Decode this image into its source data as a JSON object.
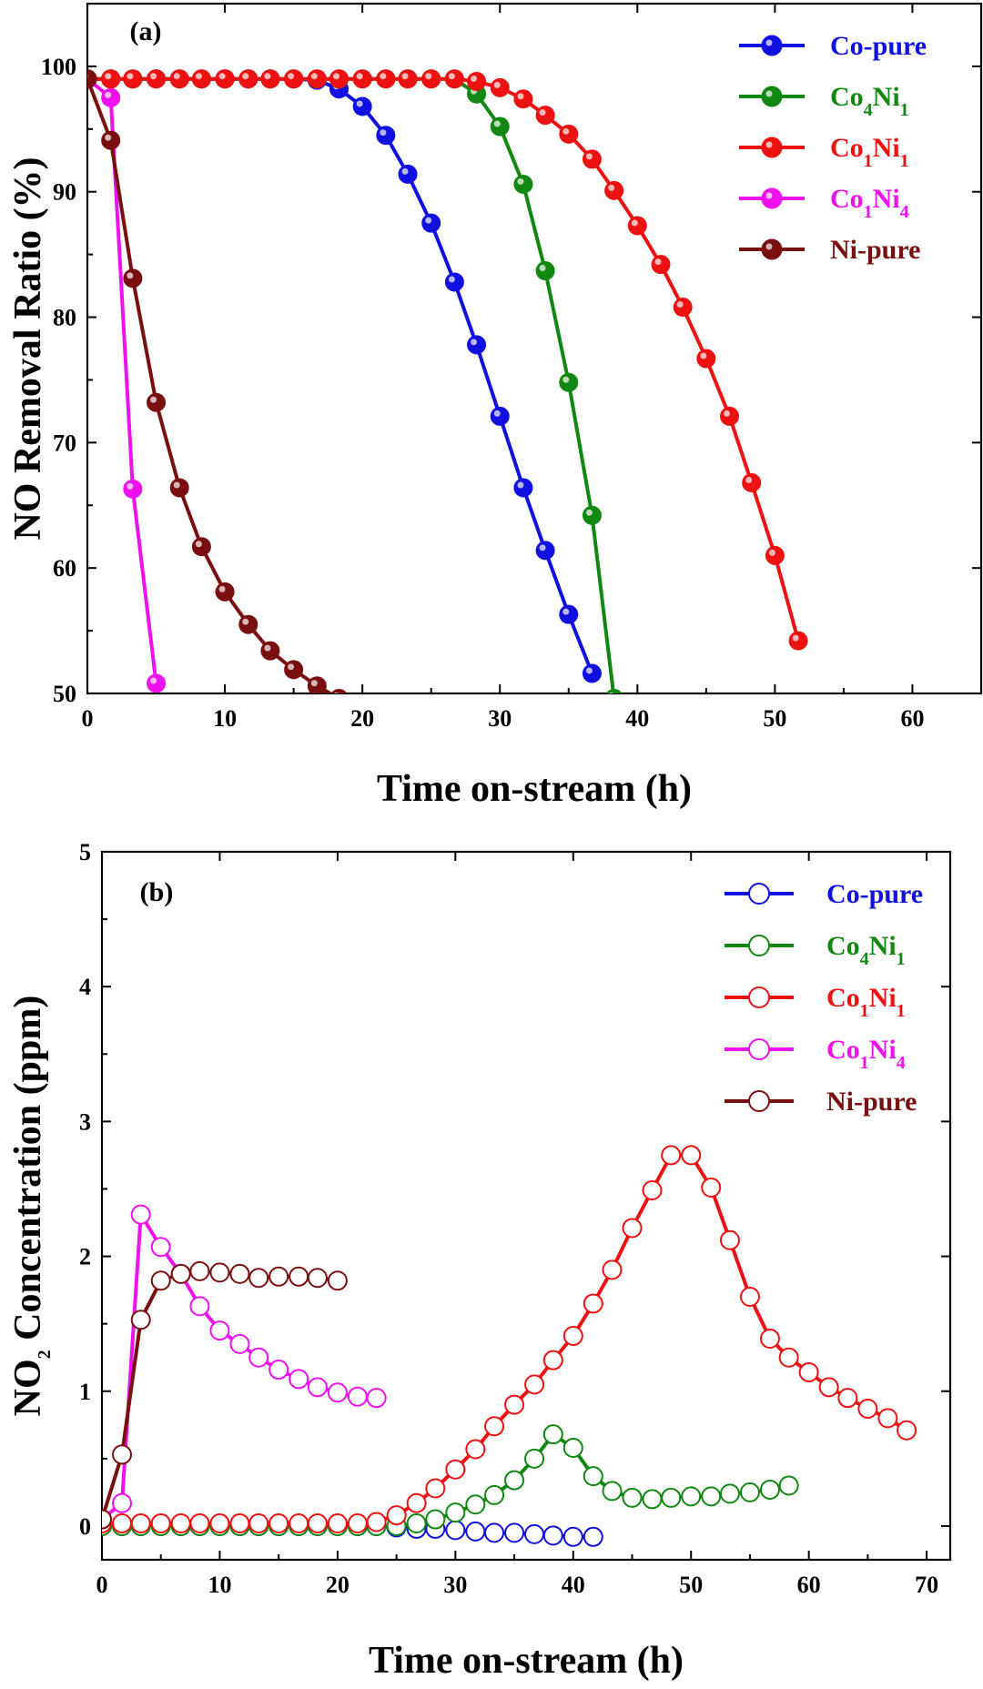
{
  "chart_data": [
    {
      "type": "line",
      "panel": "(a)",
      "xlabel": "Time on-stream (h)",
      "ylabel": "NO Removal Ratio (%)",
      "xlim": [
        0,
        65
      ],
      "ylim": [
        50,
        105
      ],
      "xticks": [
        0,
        10,
        20,
        30,
        40,
        50,
        60
      ],
      "yticks": [
        50,
        60,
        70,
        80,
        90,
        100
      ],
      "marker": "filled-circle",
      "legend_position": "top-right",
      "series": [
        {
          "name": "Co-pure",
          "label_main": "Co-pure",
          "label_parts": [
            {
              "t": "Co-pure",
              "sub": false
            }
          ],
          "color": "#1010e0",
          "x": [
            0,
            1.7,
            3.3,
            5,
            6.7,
            8.3,
            10,
            11.7,
            13.3,
            15,
            16.7,
            18.3,
            20,
            21.7,
            23.3,
            25,
            26.7,
            28.3,
            30,
            31.7,
            33.3,
            35,
            36.7
          ],
          "y": [
            99,
            99,
            99,
            99,
            99,
            99,
            99,
            99,
            99,
            99,
            98.9,
            98.2,
            96.8,
            94.5,
            91.4,
            87.5,
            82.8,
            77.8,
            72.1,
            66.4,
            61.4,
            56.3,
            51.6
          ]
        },
        {
          "name": "Co4Ni1",
          "label_parts": [
            {
              "t": "Co",
              "sub": false
            },
            {
              "t": "4",
              "sub": true
            },
            {
              "t": "Ni",
              "sub": false
            },
            {
              "t": "1",
              "sub": true
            }
          ],
          "color": "#118811",
          "x": [
            0,
            1.7,
            3.3,
            5,
            6.7,
            8.3,
            10,
            11.7,
            13.3,
            15,
            16.7,
            18.3,
            20,
            21.7,
            23.3,
            25,
            26.7,
            28.3,
            30,
            31.7,
            33.3,
            35,
            36.7,
            38.3
          ],
          "y": [
            99,
            99,
            99,
            99,
            99,
            99,
            99,
            99,
            99,
            99,
            99,
            99,
            99,
            99,
            99,
            99,
            99,
            97.8,
            95.2,
            90.6,
            83.7,
            74.8,
            64.2,
            49.6
          ]
        },
        {
          "name": "Co1Ni1",
          "label_parts": [
            {
              "t": "Co",
              "sub": false
            },
            {
              "t": "1",
              "sub": true
            },
            {
              "t": "Ni",
              "sub": false
            },
            {
              "t": "1",
              "sub": true
            }
          ],
          "color": "#ee1111",
          "x": [
            0,
            1.7,
            3.3,
            5,
            6.7,
            8.3,
            10,
            11.7,
            13.3,
            15,
            16.7,
            18.3,
            20,
            21.7,
            23.3,
            25,
            26.7,
            28.3,
            30,
            31.7,
            33.3,
            35,
            36.7,
            38.3,
            40,
            41.7,
            43.3,
            45,
            46.7,
            48.3,
            50,
            51.7
          ],
          "y": [
            99,
            99,
            99,
            99,
            99,
            99,
            99,
            99,
            99,
            99,
            99,
            99,
            99,
            99,
            99,
            99,
            99,
            98.8,
            98.3,
            97.4,
            96.1,
            94.6,
            92.6,
            90.1,
            87.3,
            84.2,
            80.8,
            76.7,
            72.1,
            66.8,
            61,
            54.2
          ]
        },
        {
          "name": "Co1Ni4",
          "label_parts": [
            {
              "t": "Co",
              "sub": false
            },
            {
              "t": "1",
              "sub": true
            },
            {
              "t": "Ni",
              "sub": false
            },
            {
              "t": "4",
              "sub": true
            }
          ],
          "color": "#ee11ee",
          "x": [
            0,
            1.7,
            3.3,
            5
          ],
          "y": [
            99,
            97.5,
            66.3,
            50.8
          ]
        },
        {
          "name": "Ni-pure",
          "label_parts": [
            {
              "t": "Ni-pure",
              "sub": false
            }
          ],
          "color": "#7a0f0f",
          "x": [
            0,
            1.7,
            3.3,
            5,
            6.7,
            8.3,
            10,
            11.7,
            13.3,
            15,
            16.7,
            18.3
          ],
          "y": [
            99,
            94.1,
            83.1,
            73.2,
            66.4,
            61.7,
            58.1,
            55.5,
            53.4,
            51.9,
            50.6,
            49.6
          ]
        }
      ]
    },
    {
      "type": "line",
      "panel": "(b)",
      "xlabel": "Time on-stream (h)",
      "ylabel_parts": [
        {
          "t": "NO",
          "sub": false
        },
        {
          "t": "2",
          "sub": true
        },
        {
          "t": " Concentration (ppm)",
          "sub": false
        }
      ],
      "xlim": [
        0,
        72
      ],
      "ylim": [
        -0.25,
        5
      ],
      "xticks": [
        0,
        10,
        20,
        30,
        40,
        50,
        60,
        70
      ],
      "yticks": [
        0,
        1,
        2,
        3,
        4,
        5
      ],
      "marker": "open-circle",
      "legend_position": "top-right",
      "series": [
        {
          "name": "Co-pure",
          "label_parts": [
            {
              "t": "Co-pure",
              "sub": false
            }
          ],
          "color": "#1010e0",
          "x": [
            0,
            1.7,
            3.3,
            5,
            6.7,
            8.3,
            10,
            11.7,
            13.3,
            15,
            16.7,
            18.3,
            20,
            21.7,
            23.3,
            25,
            26.7,
            28.3,
            30,
            31.7,
            33.3,
            35,
            36.7,
            38.3,
            40,
            41.7
          ],
          "y": [
            0,
            0,
            0,
            0,
            0,
            0,
            0,
            0,
            0,
            0,
            0,
            0,
            0,
            0,
            0,
            -0.01,
            -0.02,
            -0.02,
            -0.03,
            -0.04,
            -0.05,
            -0.05,
            -0.06,
            -0.07,
            -0.08,
            -0.08
          ]
        },
        {
          "name": "Co4Ni1",
          "label_parts": [
            {
              "t": "Co",
              "sub": false
            },
            {
              "t": "4",
              "sub": true
            },
            {
              "t": "Ni",
              "sub": false
            },
            {
              "t": "1",
              "sub": true
            }
          ],
          "color": "#118811",
          "x": [
            0,
            1.7,
            3.3,
            5,
            6.7,
            8.3,
            10,
            11.7,
            13.3,
            15,
            16.7,
            18.3,
            20,
            21.7,
            23.3,
            25,
            26.7,
            28.3,
            30,
            31.7,
            33.3,
            35,
            36.7,
            38.3,
            40,
            41.7,
            43.3,
            45,
            46.7,
            48.3,
            50,
            51.7,
            53.3,
            55,
            56.7,
            58.3
          ],
          "y": [
            0,
            0,
            0,
            0,
            0,
            0,
            0,
            0,
            0,
            0,
            0,
            0,
            0,
            0,
            0,
            0,
            0.02,
            0.05,
            0.1,
            0.16,
            0.23,
            0.34,
            0.5,
            0.68,
            0.58,
            0.37,
            0.26,
            0.21,
            0.2,
            0.21,
            0.22,
            0.22,
            0.24,
            0.25,
            0.27,
            0.3
          ]
        },
        {
          "name": "Co1Ni1",
          "label_parts": [
            {
              "t": "Co",
              "sub": false
            },
            {
              "t": "1",
              "sub": true
            },
            {
              "t": "Ni",
              "sub": false
            },
            {
              "t": "1",
              "sub": true
            }
          ],
          "color": "#ee1111",
          "x": [
            0,
            1.7,
            3.3,
            5,
            6.7,
            8.3,
            10,
            11.7,
            13.3,
            15,
            16.7,
            18.3,
            20,
            21.7,
            23.3,
            25,
            26.7,
            28.3,
            30,
            31.7,
            33.3,
            35,
            36.7,
            38.3,
            40,
            41.7,
            43.3,
            45,
            46.7,
            48.3,
            50,
            51.7,
            53.3,
            55,
            56.7,
            58.3,
            60,
            61.7,
            63.3,
            65,
            66.7,
            68.3
          ],
          "y": [
            0.02,
            0.02,
            0.02,
            0.02,
            0.02,
            0.02,
            0.02,
            0.02,
            0.02,
            0.02,
            0.02,
            0.02,
            0.02,
            0.02,
            0.03,
            0.08,
            0.17,
            0.28,
            0.42,
            0.57,
            0.74,
            0.9,
            1.05,
            1.23,
            1.41,
            1.65,
            1.9,
            2.21,
            2.49,
            2.75,
            2.75,
            2.51,
            2.12,
            1.7,
            1.39,
            1.25,
            1.14,
            1.03,
            0.95,
            0.87,
            0.8,
            0.71
          ]
        },
        {
          "name": "Co1Ni4",
          "label_parts": [
            {
              "t": "Co",
              "sub": false
            },
            {
              "t": "1",
              "sub": true
            },
            {
              "t": "Ni",
              "sub": false
            },
            {
              "t": "4",
              "sub": true
            }
          ],
          "color": "#ee11ee",
          "x": [
            0,
            1.7,
            3.3,
            5,
            6.7,
            8.3,
            10,
            11.7,
            13.3,
            15,
            16.7,
            18.3,
            20,
            21.7,
            23.3
          ],
          "y": [
            0.05,
            0.17,
            2.31,
            2.07,
            1.87,
            1.63,
            1.45,
            1.35,
            1.25,
            1.16,
            1.09,
            1.03,
            0.99,
            0.96,
            0.95
          ]
        },
        {
          "name": "Ni-pure",
          "label_parts": [
            {
              "t": "Ni-pure",
              "sub": false
            }
          ],
          "color": "#7a0f0f",
          "x": [
            0,
            1.7,
            3.3,
            5,
            6.7,
            8.3,
            10,
            11.7,
            13.3,
            15,
            16.7,
            18.3,
            20
          ],
          "y": [
            0.05,
            0.53,
            1.53,
            1.82,
            1.87,
            1.89,
            1.88,
            1.87,
            1.84,
            1.85,
            1.85,
            1.84,
            1.82
          ]
        }
      ]
    }
  ]
}
